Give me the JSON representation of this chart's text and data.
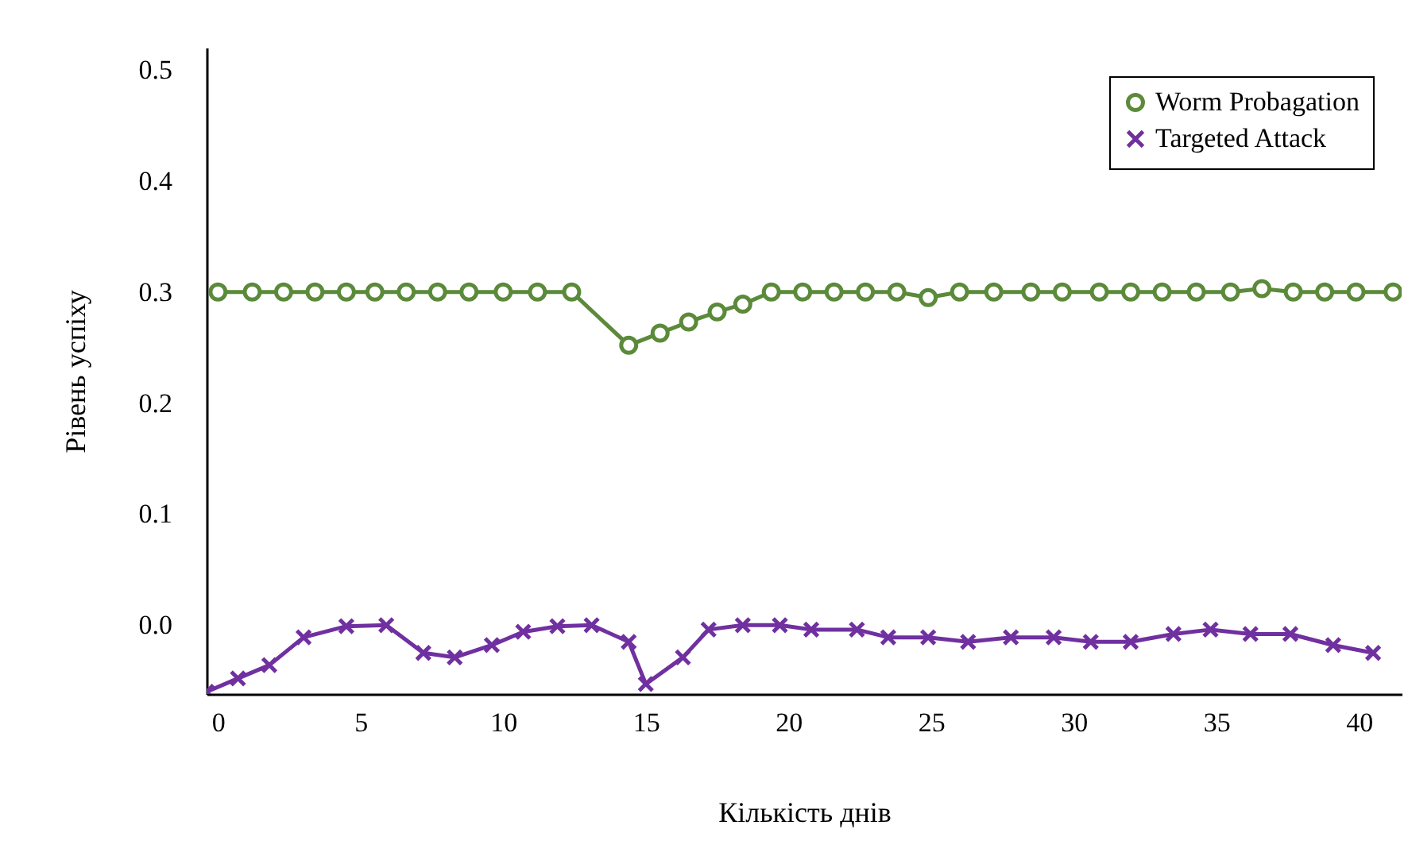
{
  "chart_data": {
    "type": "line",
    "xlabel": "Кількість  днів",
    "ylabel": "Рівень успіху",
    "xlim": [
      -0.4,
      41.5
    ],
    "ylim": [
      -0.062,
      0.52
    ],
    "xticks": [
      0,
      5,
      10,
      15,
      20,
      25,
      30,
      35,
      40
    ],
    "yticks": [
      {
        "value": 0,
        "label": "0.0"
      },
      0.1,
      0.2,
      0.3,
      0.4,
      0.5
    ],
    "grid": false,
    "legend": "top right",
    "line_style": "solid",
    "series": [
      {
        "name": "Worm Probagation",
        "color": "#5b8a3a",
        "marker": "circle",
        "x": [
          0,
          1.2,
          2.3,
          3.4,
          4.5,
          5.5,
          6.6,
          7.7,
          8.8,
          10.0,
          11.2,
          12.4,
          14.4,
          15.5,
          16.5,
          17.5,
          18.4,
          19.4,
          20.5,
          21.6,
          22.7,
          23.8,
          24.9,
          26.0,
          27.2,
          28.5,
          29.6,
          30.9,
          32.0,
          33.1,
          34.3,
          35.5,
          36.6,
          37.7,
          38.8,
          39.9,
          41.2
        ],
        "values": [
          0.3,
          0.3,
          0.3,
          0.3,
          0.3,
          0.3,
          0.3,
          0.3,
          0.3,
          0.3,
          0.3,
          0.3,
          0.252,
          0.263,
          0.273,
          0.282,
          0.289,
          0.3,
          0.3,
          0.3,
          0.3,
          0.3,
          0.295,
          0.3,
          0.3,
          0.3,
          0.3,
          0.3,
          0.3,
          0.3,
          0.3,
          0.3,
          0.303,
          0.3,
          0.3,
          0.3,
          0.3
        ]
      },
      {
        "name": "Targeted Attack",
        "color": "#7030a0",
        "marker": "cross",
        "x": [
          -0.4,
          0.7,
          1.8,
          3.0,
          4.5,
          5.9,
          7.2,
          8.3,
          9.6,
          10.7,
          11.9,
          13.1,
          14.4,
          15.0,
          16.3,
          17.2,
          18.4,
          19.7,
          20.8,
          22.4,
          23.5,
          24.9,
          26.3,
          27.8,
          29.3,
          30.6,
          32.0,
          33.5,
          34.8,
          36.2,
          37.6,
          39.1,
          40.5
        ],
        "values": [
          -0.06,
          -0.048,
          -0.036,
          -0.011,
          -0.001,
          0.0,
          -0.025,
          -0.029,
          -0.018,
          -0.006,
          -0.001,
          0.0,
          -0.015,
          -0.053,
          -0.029,
          -0.004,
          0.0,
          0.0,
          -0.004,
          -0.004,
          -0.011,
          -0.011,
          -0.015,
          -0.011,
          -0.011,
          -0.015,
          -0.015,
          -0.008,
          -0.004,
          -0.008,
          -0.008,
          -0.018,
          -0.025
        ]
      }
    ]
  }
}
